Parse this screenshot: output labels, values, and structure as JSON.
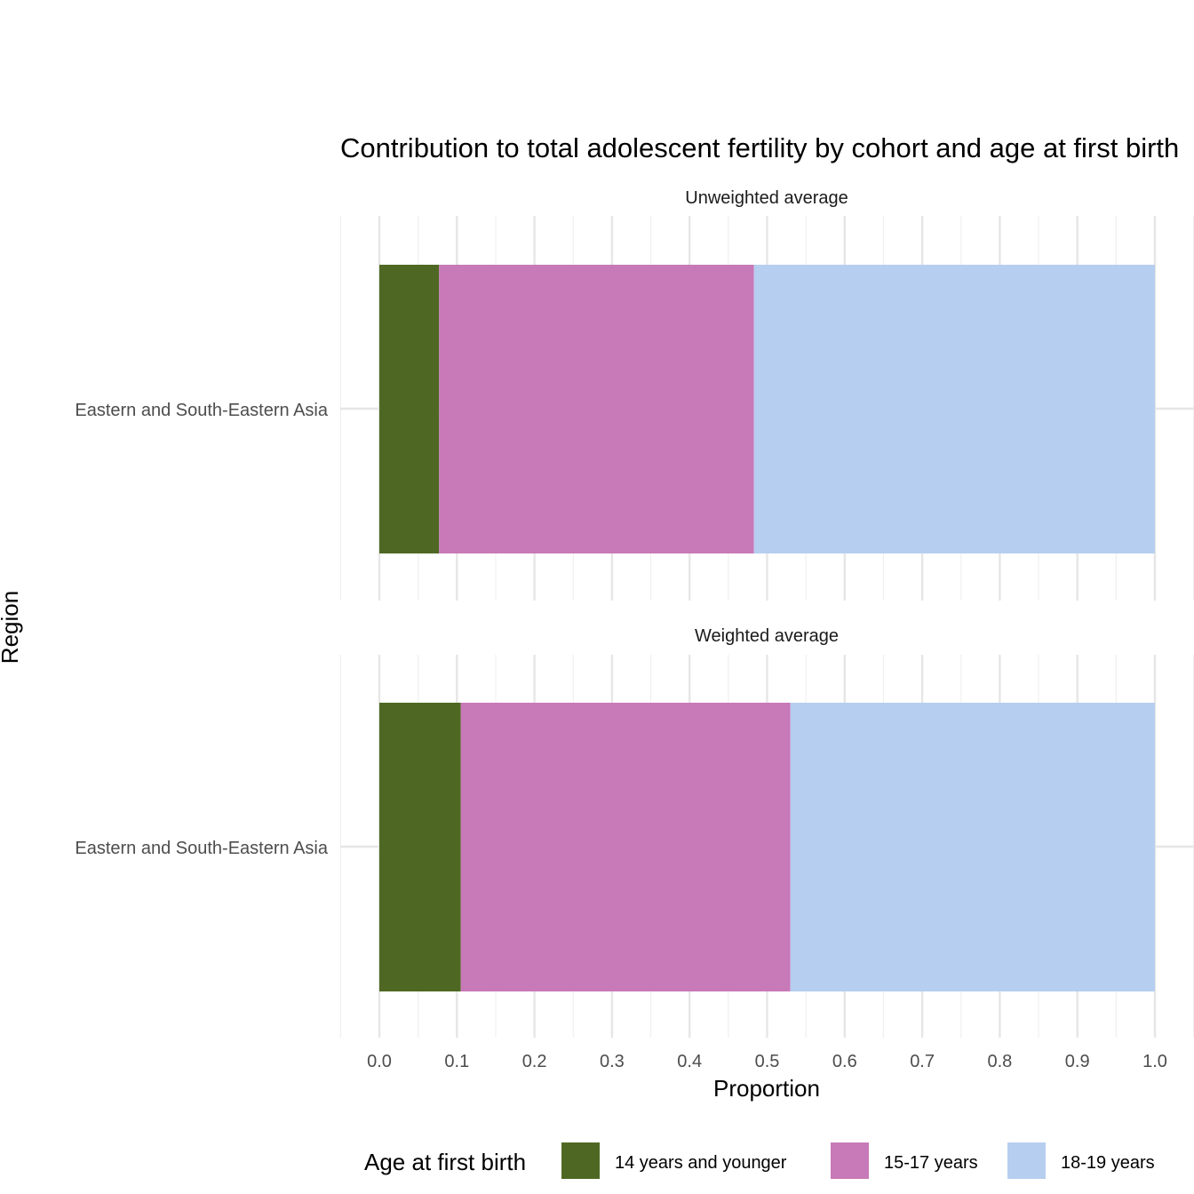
{
  "chart_data": {
    "type": "bar",
    "orientation": "horizontal",
    "stacked": true,
    "title": "Contribution to total adolescent fertility by cohort and age at first birth",
    "xlabel": "Proportion",
    "ylabel": "Region",
    "xlim": [
      0,
      1
    ],
    "x_ticks": [
      "0.0",
      "0.1",
      "0.2",
      "0.3",
      "0.4",
      "0.5",
      "0.6",
      "0.7",
      "0.8",
      "0.9",
      "1.0"
    ],
    "grid": true,
    "legend": {
      "title": "Age at first birth",
      "position": "bottom"
    },
    "series": [
      {
        "name": "14 years and younger",
        "color": "#4e6823"
      },
      {
        "name": "15-17 years",
        "color": "#c879b8"
      },
      {
        "name": "18-19 years",
        "color": "#b6cef0"
      }
    ],
    "panels": [
      {
        "label": "Unweighted average",
        "categories": [
          "Eastern and South-Eastern Asia"
        ],
        "values": [
          [
            0.077,
            0.406,
            0.517
          ]
        ]
      },
      {
        "label": "Weighted average",
        "categories": [
          "Eastern and South-Eastern Asia"
        ],
        "values": [
          [
            0.105,
            0.425,
            0.47
          ]
        ]
      }
    ]
  }
}
